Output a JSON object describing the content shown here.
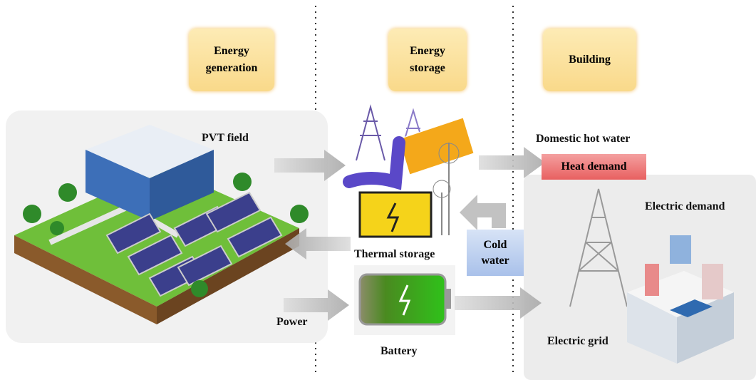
{
  "columns": [
    "Energy generation",
    "Energy storage",
    "Building"
  ],
  "labels": {
    "pvt_field": "PVT field",
    "domestic_hot_water": "Domestic hot water",
    "heat_demand": "Heat demand",
    "electric_demand": "Electric demand",
    "thermal_storage": "Thermal storage",
    "cold_water": "Cold water",
    "power": "Power",
    "battery": "Battery",
    "electric_grid": "Electric grid"
  }
}
